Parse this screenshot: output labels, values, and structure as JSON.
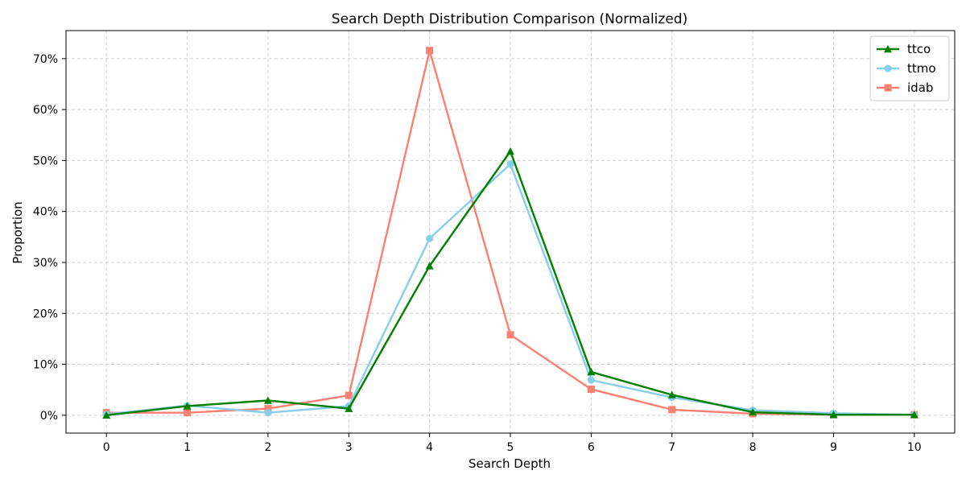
{
  "chart_data": {
    "type": "line",
    "title": "Search Depth Distribution Comparison (Normalized)",
    "xlabel": "Search Depth",
    "ylabel": "Proportion",
    "x": [
      0,
      1,
      2,
      3,
      4,
      5,
      6,
      7,
      8,
      9,
      10
    ],
    "x_tick_labels": [
      "0",
      "1",
      "2",
      "3",
      "4",
      "5",
      "6",
      "7",
      "8",
      "9",
      "10"
    ],
    "xlim": [
      -0.5,
      10.5
    ],
    "ylim": [
      -0.035,
      0.755
    ],
    "y_ticks": [
      0,
      0.1,
      0.2,
      0.3,
      0.4,
      0.5,
      0.6,
      0.7
    ],
    "y_tick_labels": [
      "0%",
      "10%",
      "20%",
      "30%",
      "40%",
      "50%",
      "60%",
      "70%"
    ],
    "grid": true,
    "legend_position": "top-right",
    "series": [
      {
        "name": "ttco",
        "color": "#008000",
        "marker": "triangle",
        "values": [
          0.0,
          0.018,
          0.029,
          0.013,
          0.293,
          0.518,
          0.085,
          0.04,
          0.006,
          0.001,
          0.001
        ]
      },
      {
        "name": "ttmo",
        "color": "#87ceeb",
        "marker": "circle",
        "values": [
          0.002,
          0.019,
          0.005,
          0.018,
          0.347,
          0.493,
          0.069,
          0.035,
          0.01,
          0.004,
          0.001
        ]
      },
      {
        "name": "idab",
        "color": "#fa8072",
        "marker": "square",
        "values": [
          0.005,
          0.005,
          0.013,
          0.039,
          0.716,
          0.158,
          0.051,
          0.011,
          0.003,
          0.001,
          0.001
        ]
      }
    ]
  }
}
